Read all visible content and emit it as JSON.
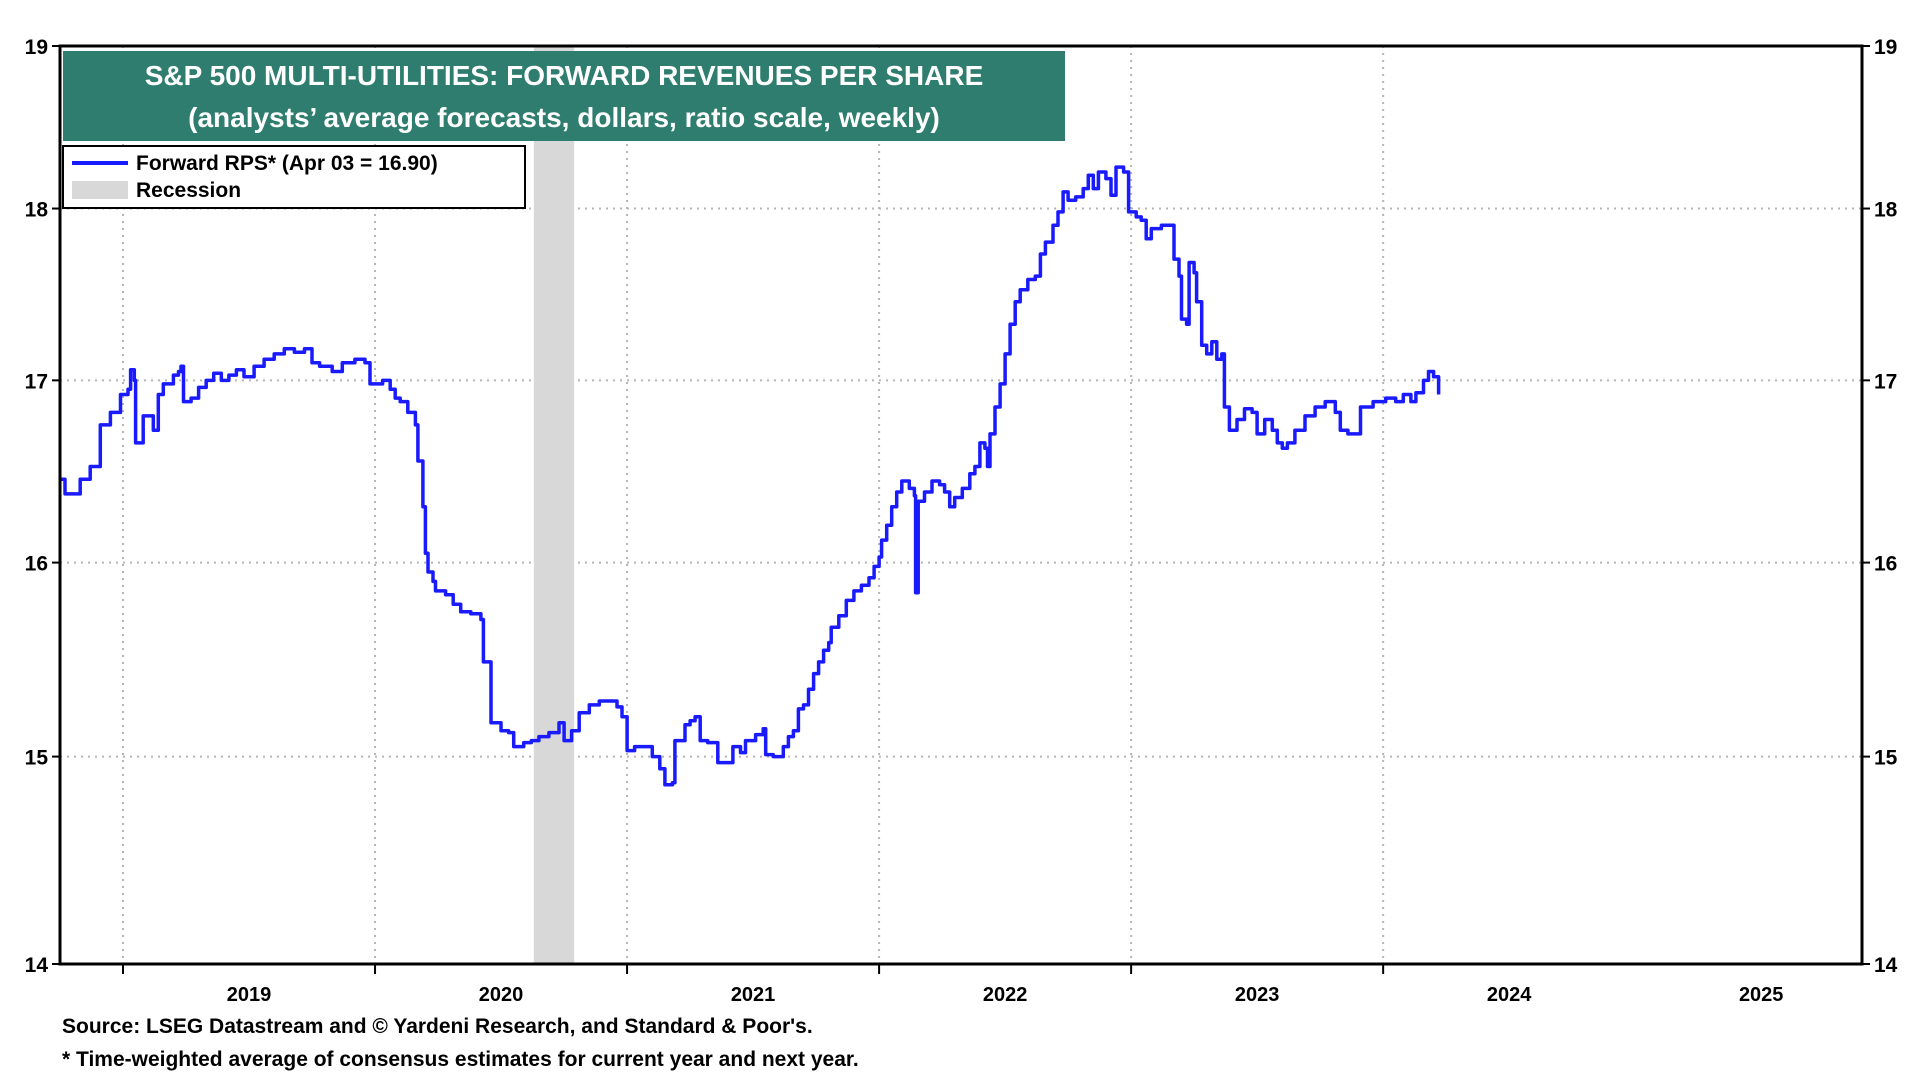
{
  "chart_data": {
    "type": "line",
    "title": "S&P 500 MULTI-UTILITIES: FORWARD REVENUES PER SHARE",
    "subtitle": "(analysts’ average forecasts, dollars, ratio scale, weekly)",
    "yscale": "log",
    "ylim": [
      14,
      19
    ],
    "yticks": [
      14,
      15,
      16,
      17,
      18,
      19
    ],
    "xlim": [
      2018.25,
      2025.4
    ],
    "year_labels": [
      "2019",
      "2020",
      "2021",
      "2022",
      "2023",
      "2024",
      "2025"
    ],
    "legend": {
      "position": "top-left",
      "series_label": "Forward RPS* (Apr 03 = 16.90)",
      "recession_label": "Recession"
    },
    "recession": {
      "start": 2020.13,
      "end": 2020.29
    },
    "series": [
      {
        "name": "Forward RPS",
        "color": "#1a1aff",
        "points": [
          [
            2018.25,
            16.45
          ],
          [
            2018.27,
            16.37
          ],
          [
            2018.29,
            16.37
          ],
          [
            2018.33,
            16.45
          ],
          [
            2018.37,
            16.52
          ],
          [
            2018.39,
            16.52
          ],
          [
            2018.41,
            16.75
          ],
          [
            2018.45,
            16.82
          ],
          [
            2018.47,
            16.82
          ],
          [
            2018.49,
            16.92
          ],
          [
            2018.52,
            16.95
          ],
          [
            2018.53,
            17.06
          ],
          [
            2018.545,
            17.0
          ],
          [
            2018.55,
            16.65
          ],
          [
            2018.57,
            16.65
          ],
          [
            2018.58,
            16.8
          ],
          [
            2018.61,
            16.8
          ],
          [
            2018.62,
            16.72
          ],
          [
            2018.64,
            16.92
          ],
          [
            2018.66,
            16.98
          ],
          [
            2018.68,
            16.98
          ],
          [
            2018.7,
            17.03
          ],
          [
            2018.72,
            17.05
          ],
          [
            2018.73,
            17.08
          ],
          [
            2018.74,
            16.88
          ],
          [
            2018.77,
            16.9
          ],
          [
            2018.8,
            16.96
          ],
          [
            2018.83,
            17.0
          ],
          [
            2018.86,
            17.04
          ],
          [
            2018.89,
            17.0
          ],
          [
            2018.92,
            17.03
          ],
          [
            2018.95,
            17.06
          ],
          [
            2018.98,
            17.02
          ],
          [
            2019.02,
            17.08
          ],
          [
            2019.06,
            17.12
          ],
          [
            2019.1,
            17.15
          ],
          [
            2019.14,
            17.18
          ],
          [
            2019.18,
            17.16
          ],
          [
            2019.22,
            17.18
          ],
          [
            2019.25,
            17.1
          ],
          [
            2019.28,
            17.08
          ],
          [
            2019.33,
            17.05
          ],
          [
            2019.37,
            17.1
          ],
          [
            2019.42,
            17.12
          ],
          [
            2019.46,
            17.1
          ],
          [
            2019.48,
            16.98
          ],
          [
            2019.51,
            16.98
          ],
          [
            2019.53,
            17.0
          ],
          [
            2019.56,
            16.95
          ],
          [
            2019.58,
            16.9
          ],
          [
            2019.6,
            16.88
          ],
          [
            2019.63,
            16.82
          ],
          [
            2019.66,
            16.75
          ],
          [
            2019.67,
            16.55
          ],
          [
            2019.69,
            16.3
          ],
          [
            2019.7,
            16.05
          ],
          [
            2019.71,
            15.95
          ],
          [
            2019.73,
            15.9
          ],
          [
            2019.74,
            15.85
          ],
          [
            2019.78,
            15.83
          ],
          [
            2019.81,
            15.78
          ],
          [
            2019.84,
            15.74
          ],
          [
            2019.88,
            15.73
          ],
          [
            2019.92,
            15.7
          ],
          [
            2019.93,
            15.48
          ],
          [
            2019.95,
            15.48
          ],
          [
            2019.96,
            15.17
          ],
          [
            2020.0,
            15.13
          ],
          [
            2020.03,
            15.12
          ],
          [
            2020.05,
            15.05
          ],
          [
            2020.07,
            15.05
          ],
          [
            2020.09,
            15.07
          ],
          [
            2020.12,
            15.08
          ],
          [
            2020.15,
            15.1
          ],
          [
            2020.19,
            15.12
          ],
          [
            2020.22,
            15.12
          ],
          [
            2020.23,
            15.17
          ],
          [
            2020.25,
            15.08
          ],
          [
            2020.28,
            15.13
          ],
          [
            2020.31,
            15.22
          ],
          [
            2020.35,
            15.26
          ],
          [
            2020.39,
            15.28
          ],
          [
            2020.43,
            15.28
          ],
          [
            2020.46,
            15.25
          ],
          [
            2020.48,
            15.2
          ],
          [
            2020.5,
            15.03
          ],
          [
            2020.53,
            15.05
          ],
          [
            2020.56,
            15.05
          ],
          [
            2020.6,
            15.0
          ],
          [
            2020.63,
            14.94
          ],
          [
            2020.65,
            14.86
          ],
          [
            2020.68,
            14.87
          ],
          [
            2020.69,
            15.08
          ],
          [
            2020.71,
            15.08
          ],
          [
            2020.73,
            15.16
          ],
          [
            2020.75,
            15.18
          ],
          [
            2020.77,
            15.2
          ],
          [
            2020.79,
            15.08
          ],
          [
            2020.82,
            15.07
          ],
          [
            2020.84,
            15.07
          ],
          [
            2020.86,
            14.97
          ],
          [
            2020.9,
            14.97
          ],
          [
            2020.92,
            15.05
          ],
          [
            2020.95,
            15.02
          ],
          [
            2020.97,
            15.08
          ],
          [
            2021.01,
            15.11
          ],
          [
            2021.04,
            15.14
          ],
          [
            2021.05,
            15.01
          ],
          [
            2021.08,
            15.0
          ],
          [
            2021.1,
            15.0
          ],
          [
            2021.12,
            15.05
          ],
          [
            2021.14,
            15.1
          ],
          [
            2021.16,
            15.13
          ],
          [
            2021.18,
            15.24
          ],
          [
            2021.2,
            15.26
          ],
          [
            2021.22,
            15.34
          ],
          [
            2021.24,
            15.42
          ],
          [
            2021.26,
            15.48
          ],
          [
            2021.28,
            15.54
          ],
          [
            2021.3,
            15.58
          ],
          [
            2021.31,
            15.66
          ],
          [
            2021.34,
            15.72
          ],
          [
            2021.37,
            15.8
          ],
          [
            2021.4,
            15.85
          ],
          [
            2021.43,
            15.88
          ],
          [
            2021.46,
            15.92
          ],
          [
            2021.48,
            15.98
          ],
          [
            2021.5,
            16.03
          ],
          [
            2021.51,
            16.12
          ],
          [
            2021.53,
            16.2
          ],
          [
            2021.55,
            16.3
          ],
          [
            2021.57,
            16.38
          ],
          [
            2021.59,
            16.44
          ],
          [
            2021.62,
            16.4
          ],
          [
            2021.64,
            16.36
          ],
          [
            2021.645,
            15.84
          ],
          [
            2021.655,
            16.33
          ],
          [
            2021.68,
            16.38
          ],
          [
            2021.71,
            16.44
          ],
          [
            2021.74,
            16.42
          ],
          [
            2021.76,
            16.38
          ],
          [
            2021.78,
            16.3
          ],
          [
            2021.8,
            16.35
          ],
          [
            2021.83,
            16.4
          ],
          [
            2021.86,
            16.48
          ],
          [
            2021.88,
            16.52
          ],
          [
            2021.9,
            16.65
          ],
          [
            2021.92,
            16.62
          ],
          [
            2021.93,
            16.52
          ],
          [
            2021.94,
            16.7
          ],
          [
            2021.96,
            16.85
          ],
          [
            2021.98,
            16.98
          ],
          [
            2022.0,
            17.15
          ],
          [
            2022.02,
            17.32
          ],
          [
            2022.04,
            17.45
          ],
          [
            2022.06,
            17.52
          ],
          [
            2022.09,
            17.58
          ],
          [
            2022.12,
            17.6
          ],
          [
            2022.14,
            17.73
          ],
          [
            2022.16,
            17.8
          ],
          [
            2022.19,
            17.9
          ],
          [
            2022.21,
            17.98
          ],
          [
            2022.23,
            18.1
          ],
          [
            2022.25,
            18.05
          ],
          [
            2022.28,
            18.07
          ],
          [
            2022.31,
            18.12
          ],
          [
            2022.33,
            18.2
          ],
          [
            2022.35,
            18.12
          ],
          [
            2022.37,
            18.22
          ],
          [
            2022.4,
            18.18
          ],
          [
            2022.42,
            18.08
          ],
          [
            2022.44,
            18.25
          ],
          [
            2022.47,
            18.22
          ],
          [
            2022.49,
            17.98
          ],
          [
            2022.52,
            17.95
          ],
          [
            2022.54,
            17.93
          ],
          [
            2022.56,
            17.82
          ],
          [
            2022.58,
            17.88
          ],
          [
            2022.62,
            17.9
          ],
          [
            2022.66,
            17.9
          ],
          [
            2022.67,
            17.7
          ],
          [
            2022.69,
            17.6
          ],
          [
            2022.7,
            17.35
          ],
          [
            2022.72,
            17.32
          ],
          [
            2022.73,
            17.68
          ],
          [
            2022.75,
            17.62
          ],
          [
            2022.76,
            17.45
          ],
          [
            2022.78,
            17.2
          ],
          [
            2022.8,
            17.15
          ],
          [
            2022.82,
            17.22
          ],
          [
            2022.84,
            17.12
          ],
          [
            2022.86,
            17.15
          ],
          [
            2022.87,
            16.85
          ],
          [
            2022.89,
            16.72
          ],
          [
            2022.92,
            16.78
          ],
          [
            2022.95,
            16.84
          ],
          [
            2022.98,
            16.82
          ],
          [
            2023.0,
            16.7
          ],
          [
            2023.03,
            16.78
          ],
          [
            2023.06,
            16.72
          ],
          [
            2023.08,
            16.65
          ],
          [
            2023.1,
            16.62
          ],
          [
            2023.12,
            16.65
          ],
          [
            2023.15,
            16.72
          ],
          [
            2023.19,
            16.8
          ],
          [
            2023.23,
            16.85
          ],
          [
            2023.27,
            16.88
          ],
          [
            2023.31,
            16.82
          ],
          [
            2023.33,
            16.72
          ],
          [
            2023.36,
            16.7
          ],
          [
            2023.39,
            16.7
          ],
          [
            2023.41,
            16.85
          ],
          [
            2023.46,
            16.88
          ],
          [
            2023.51,
            16.9
          ],
          [
            2023.55,
            16.88
          ],
          [
            2023.58,
            16.92
          ],
          [
            2023.61,
            16.88
          ],
          [
            2023.63,
            16.93
          ],
          [
            2023.66,
            17.0
          ],
          [
            2023.68,
            17.05
          ],
          [
            2023.7,
            17.02
          ],
          [
            2023.72,
            16.92
          ]
        ]
      }
    ]
  },
  "footer": {
    "source": "Source: LSEG Datastream and © Yardeni Research, and Standard & Poor's.",
    "note": "* Time-weighted average of consensus estimates for current year and next year."
  }
}
